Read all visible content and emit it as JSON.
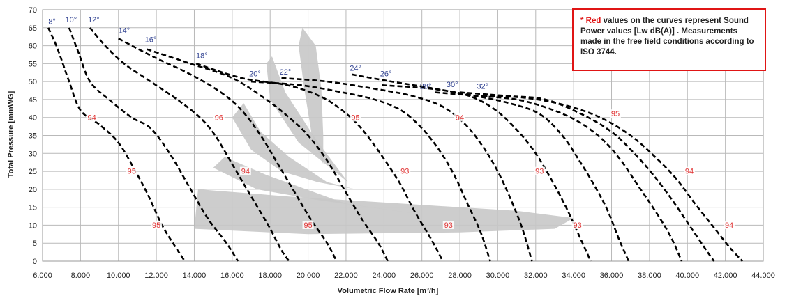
{
  "chart_data": {
    "type": "line",
    "xlabel": "Volumetric Flow Rate  [m³/h]",
    "ylabel": "Total Pressure [mmWG]",
    "xlim": [
      6000,
      44000
    ],
    "ylim": [
      0,
      70
    ],
    "x_ticks": [
      "6.000",
      "8.000",
      "10.000",
      "12.000",
      "14.000",
      "16.000",
      "18.000",
      "20.000",
      "22.000",
      "24.000",
      "26.000",
      "28.000",
      "30.000",
      "32.000",
      "34.000",
      "36.000",
      "38.000",
      "40.000",
      "42.000",
      "44.000"
    ],
    "y_ticks": [
      "0",
      "5",
      "10",
      "15",
      "20",
      "25",
      "30",
      "35",
      "40",
      "45",
      "50",
      "55",
      "60",
      "65",
      "70"
    ],
    "grid": true,
    "colors": {
      "curve": "#000000",
      "angle_label": "#2c3e8f",
      "sound_label": "#e03030",
      "efficiency_band": "#c8c8c8",
      "note_border": "#e01515"
    },
    "series": [
      {
        "name": "8°",
        "points": [
          [
            6300,
            65
          ],
          [
            6800,
            59
          ],
          [
            7400,
            50
          ],
          [
            8000,
            42
          ],
          [
            9000,
            38
          ],
          [
            10000,
            33
          ],
          [
            10900,
            25
          ],
          [
            11600,
            18
          ],
          [
            12300,
            10
          ],
          [
            13000,
            4
          ],
          [
            13500,
            0
          ]
        ]
      },
      {
        "name": "10°",
        "points": [
          [
            7400,
            65
          ],
          [
            7900,
            58
          ],
          [
            8500,
            50
          ],
          [
            9500,
            45
          ],
          [
            10700,
            40
          ],
          [
            11700,
            37
          ],
          [
            12700,
            30
          ],
          [
            13700,
            21
          ],
          [
            14700,
            12
          ],
          [
            15700,
            5
          ],
          [
            16300,
            0
          ]
        ]
      },
      {
        "name": "12°",
        "points": [
          [
            8500,
            65
          ],
          [
            9300,
            60
          ],
          [
            10300,
            55
          ],
          [
            11700,
            50
          ],
          [
            13100,
            45
          ],
          [
            14300,
            40
          ],
          [
            15100,
            35
          ],
          [
            16000,
            27
          ],
          [
            17000,
            18
          ],
          [
            17900,
            10
          ],
          [
            18600,
            3
          ],
          [
            19000,
            0
          ]
        ]
      },
      {
        "name": "14°",
        "points": [
          [
            10000,
            62
          ],
          [
            11800,
            57
          ],
          [
            13800,
            52
          ],
          [
            15400,
            47
          ],
          [
            16500,
            42
          ],
          [
            17500,
            35
          ],
          [
            18300,
            28
          ],
          [
            19200,
            20
          ],
          [
            20100,
            12
          ],
          [
            21000,
            5
          ],
          [
            21500,
            0
          ]
        ]
      },
      {
        "name": "16°",
        "points": [
          [
            11500,
            59
          ],
          [
            13800,
            55
          ],
          [
            16000,
            51
          ],
          [
            17800,
            45
          ],
          [
            19000,
            40
          ],
          [
            20000,
            35
          ],
          [
            21000,
            28
          ],
          [
            21900,
            20
          ],
          [
            22800,
            12
          ],
          [
            23700,
            5
          ],
          [
            24200,
            0
          ]
        ]
      },
      {
        "name": "18°",
        "points": [
          [
            14100,
            55
          ],
          [
            16500,
            51
          ],
          [
            18900,
            49
          ],
          [
            20600,
            46
          ],
          [
            21800,
            42
          ],
          [
            22800,
            37
          ],
          [
            23800,
            30
          ],
          [
            24800,
            22
          ],
          [
            25600,
            14
          ],
          [
            26500,
            6
          ],
          [
            27100,
            0
          ]
        ]
      },
      {
        "name": "20°",
        "points": [
          [
            17000,
            50
          ],
          [
            19600,
            49
          ],
          [
            21800,
            47
          ],
          [
            23500,
            45
          ],
          [
            24900,
            42
          ],
          [
            26000,
            37
          ],
          [
            26900,
            31
          ],
          [
            27700,
            24
          ],
          [
            28400,
            16
          ],
          [
            29100,
            8
          ],
          [
            29600,
            0
          ]
        ]
      },
      {
        "name": "22°",
        "points": [
          [
            18600,
            51
          ],
          [
            21000,
            50
          ],
          [
            23500,
            48
          ],
          [
            25500,
            46
          ],
          [
            27100,
            43
          ],
          [
            28300,
            38
          ],
          [
            29200,
            32
          ],
          [
            30000,
            25
          ],
          [
            30700,
            17
          ],
          [
            31300,
            9
          ],
          [
            31800,
            0
          ]
        ]
      },
      {
        "name": "24°",
        "points": [
          [
            22300,
            52
          ],
          [
            24400,
            50
          ],
          [
            26700,
            48
          ],
          [
            28500,
            46
          ],
          [
            29900,
            42
          ],
          [
            31100,
            36
          ],
          [
            32000,
            30
          ],
          [
            32800,
            23
          ],
          [
            33600,
            15
          ],
          [
            34300,
            7
          ],
          [
            34900,
            0
          ]
        ]
      },
      {
        "name": "26°",
        "points": [
          [
            23900,
            49
          ],
          [
            26500,
            48
          ],
          [
            28800,
            46
          ],
          [
            30600,
            44
          ],
          [
            32200,
            41
          ],
          [
            33400,
            35
          ],
          [
            34300,
            28
          ],
          [
            35100,
            21
          ],
          [
            35800,
            14
          ],
          [
            36400,
            6
          ],
          [
            36900,
            0
          ]
        ]
      },
      {
        "name": "28°",
        "points": [
          [
            26700,
            47
          ],
          [
            29000,
            46
          ],
          [
            31000,
            45
          ],
          [
            32700,
            42.5
          ],
          [
            34200,
            39
          ],
          [
            35500,
            34
          ],
          [
            36500,
            28
          ],
          [
            37400,
            21
          ],
          [
            38300,
            14
          ],
          [
            39100,
            7
          ],
          [
            39700,
            0
          ]
        ]
      },
      {
        "name": "30°",
        "points": [
          [
            28000,
            47
          ],
          [
            30500,
            46
          ],
          [
            32500,
            45
          ],
          [
            34400,
            41
          ],
          [
            36000,
            36
          ],
          [
            37200,
            30
          ],
          [
            38200,
            24
          ],
          [
            39200,
            17
          ],
          [
            40100,
            10
          ],
          [
            41000,
            3
          ],
          [
            41400,
            0
          ]
        ]
      },
      {
        "name": "32°",
        "points": [
          [
            29200,
            46
          ],
          [
            31400,
            45.5
          ],
          [
            33500,
            43.5
          ],
          [
            35400,
            40
          ],
          [
            37000,
            35
          ],
          [
            38300,
            29
          ],
          [
            39400,
            23
          ],
          [
            40400,
            16
          ],
          [
            41300,
            10
          ],
          [
            42200,
            4
          ],
          [
            42900,
            0
          ]
        ]
      }
    ],
    "angle_labels": [
      {
        "text": "8°",
        "x": 6500,
        "y": 66
      },
      {
        "text": "10°",
        "x": 7500,
        "y": 66.5
      },
      {
        "text": "12°",
        "x": 8700,
        "y": 66.5
      },
      {
        "text": "14°",
        "x": 10300,
        "y": 63.5
      },
      {
        "text": "16°",
        "x": 11700,
        "y": 61
      },
      {
        "text": "18°",
        "x": 14400,
        "y": 56.5
      },
      {
        "text": "20°",
        "x": 17200,
        "y": 51.5
      },
      {
        "text": "22°",
        "x": 18800,
        "y": 52
      },
      {
        "text": "24°",
        "x": 22500,
        "y": 53
      },
      {
        "text": "26°",
        "x": 24100,
        "y": 51.5
      },
      {
        "text": "28°",
        "x": 26200,
        "y": 48
      },
      {
        "text": "30°",
        "x": 27600,
        "y": 48.5
      },
      {
        "text": "32°",
        "x": 29200,
        "y": 48
      }
    ],
    "sound_power_labels": [
      {
        "text": "94",
        "x": 8600,
        "y": 39.5
      },
      {
        "text": "95",
        "x": 10700,
        "y": 24.5
      },
      {
        "text": "95",
        "x": 12000,
        "y": 9.5
      },
      {
        "text": "96",
        "x": 15300,
        "y": 39.5
      },
      {
        "text": "94",
        "x": 16700,
        "y": 24.5
      },
      {
        "text": "95",
        "x": 20000,
        "y": 9.5
      },
      {
        "text": "95",
        "x": 22500,
        "y": 39.5
      },
      {
        "text": "93",
        "x": 25100,
        "y": 24.5
      },
      {
        "text": "93",
        "x": 27400,
        "y": 9.5
      },
      {
        "text": "94",
        "x": 28000,
        "y": 39.5
      },
      {
        "text": "93",
        "x": 32200,
        "y": 24.5
      },
      {
        "text": "93",
        "x": 34200,
        "y": 9.5
      },
      {
        "text": "95",
        "x": 36200,
        "y": 40.5
      },
      {
        "text": "94",
        "x": 40100,
        "y": 24.5
      },
      {
        "text": "94",
        "x": 42200,
        "y": 9.5
      }
    ],
    "efficiency_bands": [
      [
        [
          14200,
          20
        ],
        [
          19000,
          18
        ],
        [
          25000,
          16
        ],
        [
          31000,
          14
        ],
        [
          34000,
          12
        ],
        [
          33000,
          9
        ],
        [
          28000,
          8
        ],
        [
          20000,
          7.5
        ],
        [
          14000,
          9
        ]
      ],
      [
        [
          15600,
          29
        ],
        [
          17800,
          24
        ],
        [
          22000,
          16
        ],
        [
          26000,
          13
        ],
        [
          20500,
          17
        ],
        [
          17300,
          20
        ],
        [
          15000,
          26
        ]
      ],
      [
        [
          16600,
          44
        ],
        [
          17500,
          36
        ],
        [
          19000,
          29
        ],
        [
          21000,
          22
        ],
        [
          22500,
          20
        ],
        [
          20500,
          22
        ],
        [
          18600,
          25
        ],
        [
          17000,
          31
        ],
        [
          16000,
          40
        ]
      ],
      [
        [
          18100,
          57
        ],
        [
          18800,
          47
        ],
        [
          20400,
          34
        ],
        [
          22100,
          22
        ],
        [
          19500,
          33
        ],
        [
          18000,
          45
        ],
        [
          17800,
          55
        ]
      ],
      [
        [
          19700,
          65
        ],
        [
          20400,
          60
        ],
        [
          20700,
          48
        ],
        [
          20800,
          35
        ],
        [
          20800,
          27
        ],
        [
          20200,
          35
        ],
        [
          19800,
          48
        ],
        [
          19500,
          60
        ]
      ]
    ],
    "note": {
      "marker": "* Red",
      "text": " values on the curves represent Sound Power values [Lw dB(A)] . Measurements made in the free field conditions according to ISO 3744."
    }
  }
}
